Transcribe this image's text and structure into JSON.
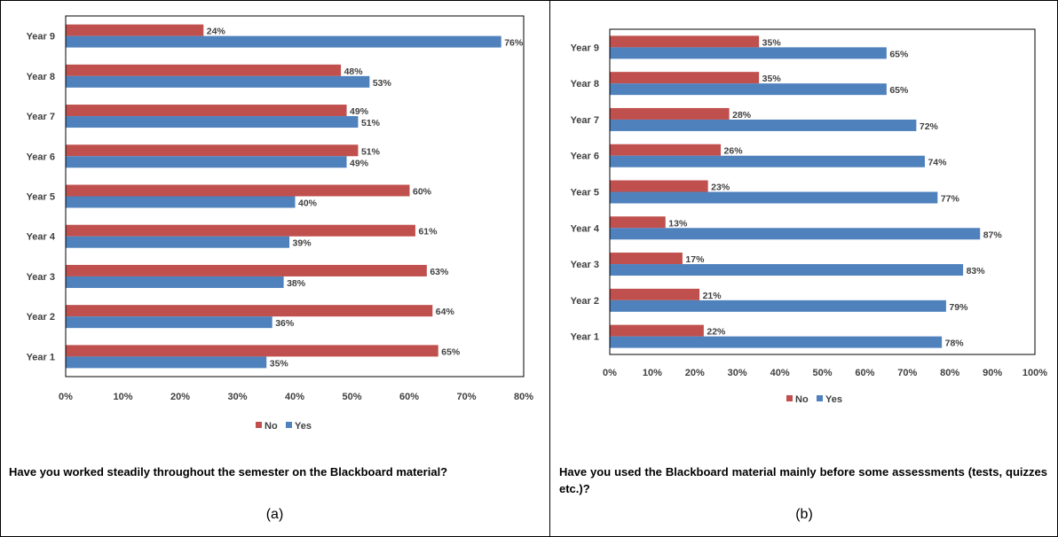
{
  "colors": {
    "no": "#C0504D",
    "yes": "#4F81BD",
    "text": "#404040"
  },
  "chart_data": [
    {
      "type": "bar",
      "orientation": "horizontal",
      "categories": [
        "Year 1",
        "Year 2",
        "Year 3",
        "Year 4",
        "Year 5",
        "Year 6",
        "Year 7",
        "Year 8",
        "Year 9"
      ],
      "series": [
        {
          "name": "No",
          "values": [
            65,
            64,
            63,
            61,
            60,
            51,
            49,
            48,
            24
          ],
          "labels": [
            "65%",
            "64%",
            "63%",
            "61%",
            "60%",
            "51%",
            "49%",
            "48%",
            "24%"
          ]
        },
        {
          "name": "Yes",
          "values": [
            35,
            36,
            38,
            39,
            40,
            49,
            51,
            53,
            76
          ],
          "labels": [
            "35%",
            "36%",
            "38%",
            "39%",
            "40%",
            "49%",
            "51%",
            "53%",
            "76%"
          ]
        }
      ],
      "xlim": [
        0,
        80
      ],
      "xticks": [
        "0%",
        "10%",
        "20%",
        "30%",
        "40%",
        "50%",
        "60%",
        "70%",
        "80%"
      ],
      "legend": "bottom",
      "grid": false
    },
    {
      "type": "bar",
      "orientation": "horizontal",
      "categories": [
        "Year 1",
        "Year 2",
        "Year 3",
        "Year 4",
        "Year 5",
        "Year 6",
        "Year 7",
        "Year 8",
        "Year 9"
      ],
      "series": [
        {
          "name": "No",
          "values": [
            22,
            21,
            17,
            13,
            23,
            26,
            28,
            35,
            35
          ],
          "labels": [
            "22%",
            "21%",
            "17%",
            "13%",
            "23%",
            "26%",
            "28%",
            "35%",
            "35%"
          ]
        },
        {
          "name": "Yes",
          "values": [
            78,
            79,
            83,
            87,
            77,
            74,
            72,
            65,
            65
          ],
          "labels": [
            "78%",
            "79%",
            "83%",
            "87%",
            "77%",
            "74%",
            "72%",
            "65%",
            "65%"
          ]
        }
      ],
      "xlim": [
        0,
        100
      ],
      "xticks": [
        "0%",
        "10%",
        "20%",
        "30%",
        "40%",
        "50%",
        "60%",
        "70%",
        "80%",
        "90%",
        "100%"
      ],
      "legend": "bottom",
      "grid": false
    }
  ],
  "panels": [
    {
      "question": "Have you worked steadily throughout the semester on the Blackboard material?",
      "caption": "(a)"
    },
    {
      "question": "Have you used the Blackboard material mainly before some assessments (tests, quizzes etc.)?",
      "caption": "(b)"
    }
  ]
}
